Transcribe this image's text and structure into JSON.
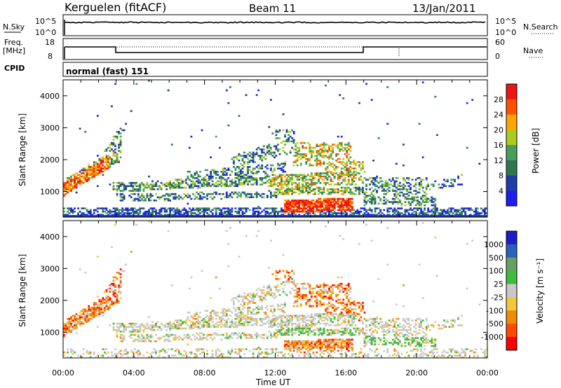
{
  "header": {
    "station": "Kerguelen (fitACF)",
    "beam": "Beam 11",
    "date": "13/Jan/2011"
  },
  "panels": {
    "nsky_label": "N.Sky",
    "nsearch_label": "N.Search",
    "nsky_ticks": [
      "10^5",
      "10^0"
    ],
    "freq_label_1": "Freq.",
    "freq_label_2": "[MHz]",
    "freq_ticks": [
      "18",
      "8"
    ],
    "nave_label": "Nave",
    "nave_ticks": [
      "60",
      "0"
    ],
    "cpid_label": "CPID",
    "cpid_value": "normal (fast) 151"
  },
  "colors": {
    "power": [
      "#1e1ef0",
      "#1e3caa",
      "#2e7850",
      "#46a05a",
      "#aacc1e",
      "#ffa500",
      "#ff5000",
      "#ee1414"
    ],
    "velocity": [
      "#ff0000",
      "#ff4a00",
      "#f08c00",
      "#f0c83c",
      "#c8c8c8",
      "#3cbe3c",
      "#64a064",
      "#2864be",
      "#1e1ec8"
    ]
  },
  "chart_data": [
    {
      "type": "heatmap",
      "name": "power",
      "ylabel": "Slant Range [km]",
      "xlabel": "Time UT",
      "ylim": [
        200,
        4500
      ],
      "xlim": [
        0,
        24
      ],
      "yticks": [
        "1000",
        "2000",
        "3000",
        "4000"
      ],
      "xticks": [
        "00:00",
        "04:00",
        "08:00",
        "12:00",
        "16:00",
        "20:00",
        "00:00"
      ],
      "colorbar_label": "Power [dB]",
      "colorbar_ticks": [
        "4",
        "8",
        "12",
        "16",
        "20",
        "24",
        "28"
      ]
    },
    {
      "type": "heatmap",
      "name": "velocity",
      "ylabel": "Slant Range [km]",
      "xlabel": "Time UT",
      "ylim": [
        200,
        4500
      ],
      "xlim": [
        0,
        24
      ],
      "yticks": [
        "1000",
        "2000",
        "3000",
        "4000"
      ],
      "xticks": [
        "00:00",
        "04:00",
        "08:00",
        "12:00",
        "16:00",
        "20:00",
        "00:00"
      ],
      "colorbar_label": "Velocity [m s⁻¹]",
      "colorbar_ticks": [
        "1000",
        "500",
        "100",
        "25",
        "-25",
        "-100",
        "-500",
        "-1000"
      ]
    }
  ]
}
